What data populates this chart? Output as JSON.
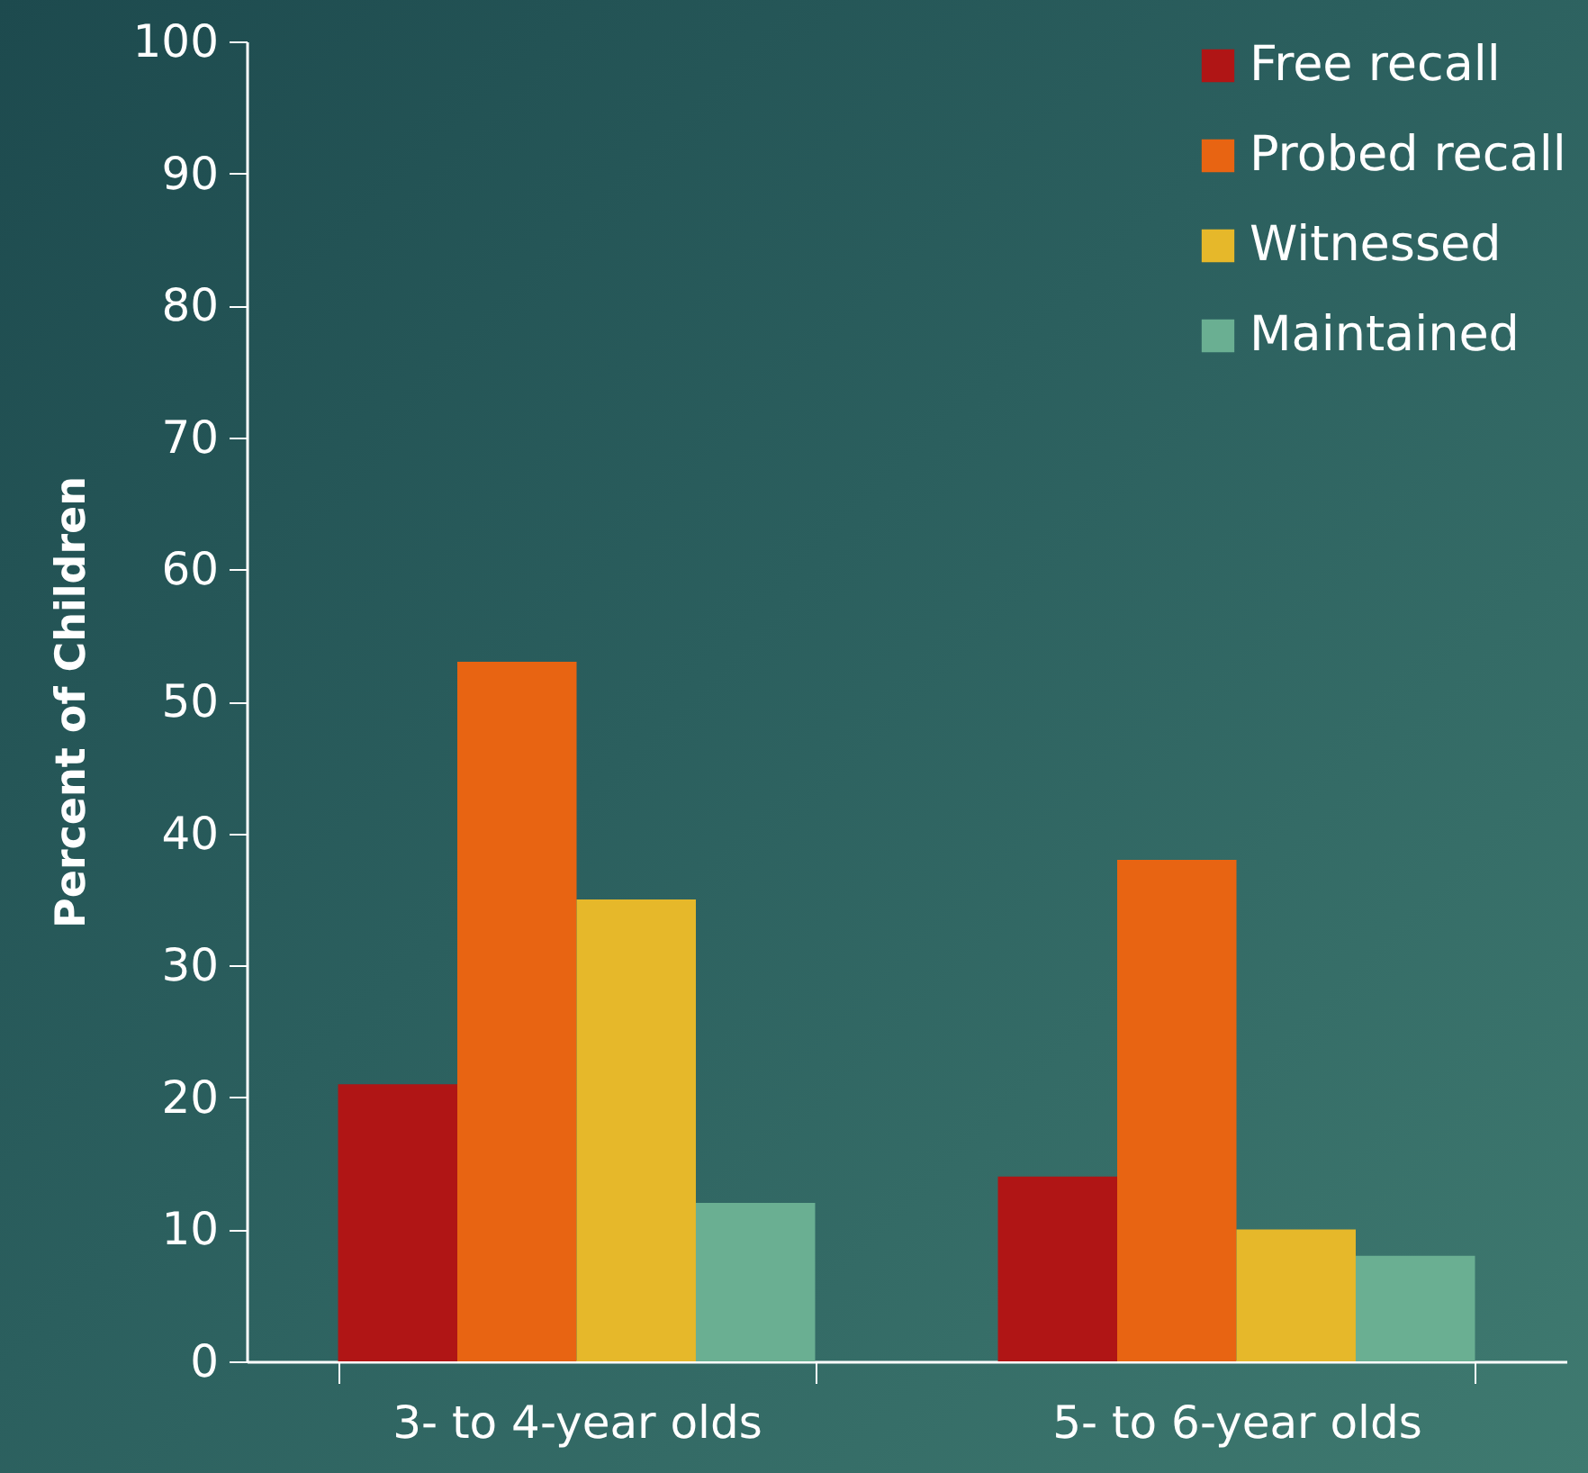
{
  "chart_data": {
    "type": "bar",
    "ylabel": "Percent of Children",
    "categories": [
      "3- to 4-year olds",
      "5- to 6-year olds"
    ],
    "series": [
      {
        "name": "Free recall",
        "color": "#b01515",
        "values": [
          21,
          14
        ]
      },
      {
        "name": "Probed recall",
        "color": "#e86412",
        "values": [
          53,
          38
        ]
      },
      {
        "name": "Witnessed",
        "color": "#e6b82a",
        "values": [
          35,
          10
        ]
      },
      {
        "name": "Maintained",
        "color": "#6aaf92",
        "values": [
          12,
          8
        ]
      }
    ],
    "ylim": [
      0,
      100
    ],
    "yticks": [
      0,
      10,
      20,
      30,
      40,
      50,
      60,
      70,
      80,
      90,
      100
    ],
    "grid": false,
    "legend": "top right"
  }
}
